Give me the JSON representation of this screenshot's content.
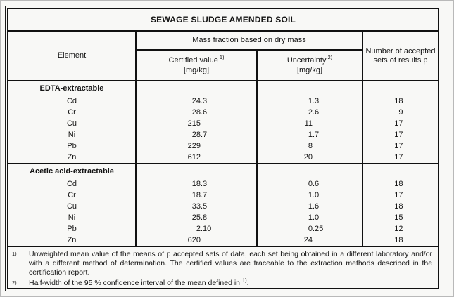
{
  "title": "SEWAGE SLUDGE AMENDED SOIL",
  "header": {
    "element": "Element",
    "mass_fraction": "Mass fraction based on dry mass",
    "certified_label": "Certified value",
    "certified_sup": "1)",
    "certified_unit": "[mg/kg]",
    "uncertainty_label": "Uncertainty",
    "uncertainty_sup": "2)",
    "uncertainty_unit": "[mg/kg]",
    "accepted": "Number of accepted sets of results p"
  },
  "sections": [
    {
      "name": "EDTA-extractable",
      "rows": [
        {
          "element": "Cd",
          "certified": "24.3",
          "uncertainty": "1.3",
          "p": "18"
        },
        {
          "element": "Cr",
          "certified": "28.6",
          "uncertainty": "2.6",
          "p": "9"
        },
        {
          "element": "Cu",
          "certified": "215",
          "uncertainty": "11",
          "p": "17"
        },
        {
          "element": "Ni",
          "certified": "28.7",
          "uncertainty": "1.7",
          "p": "17"
        },
        {
          "element": "Pb",
          "certified": "229",
          "uncertainty": "8",
          "p": "17"
        },
        {
          "element": "Zn",
          "certified": "612",
          "uncertainty": "20",
          "p": "17"
        }
      ]
    },
    {
      "name": "Acetic acid-extractable",
      "rows": [
        {
          "element": "Cd",
          "certified": "18.3",
          "uncertainty": "0.6",
          "p": "18"
        },
        {
          "element": "Cr",
          "certified": "18.7",
          "uncertainty": "1.0",
          "p": "17"
        },
        {
          "element": "Cu",
          "certified": "33.5",
          "uncertainty": "1.6",
          "p": "18"
        },
        {
          "element": "Ni",
          "certified": "25.8",
          "uncertainty": "1.0",
          "p": "15"
        },
        {
          "element": "Pb",
          "certified": "2.10",
          "uncertainty": "0.25",
          "p": "12"
        },
        {
          "element": "Zn",
          "certified": "620",
          "uncertainty": "24",
          "p": "18"
        }
      ]
    }
  ],
  "footnotes": [
    {
      "marker": "1)",
      "text": "Unweighted mean value of the means of p accepted sets of data, each set being obtained in a different laboratory and/or with a different method of determination. The certified values are traceable to the extraction methods described in the certification report."
    },
    {
      "marker": "2)",
      "text": "Half-width of the 95 % confidence interval of the mean defined in ",
      "sup": "1)",
      "tail": "."
    }
  ]
}
